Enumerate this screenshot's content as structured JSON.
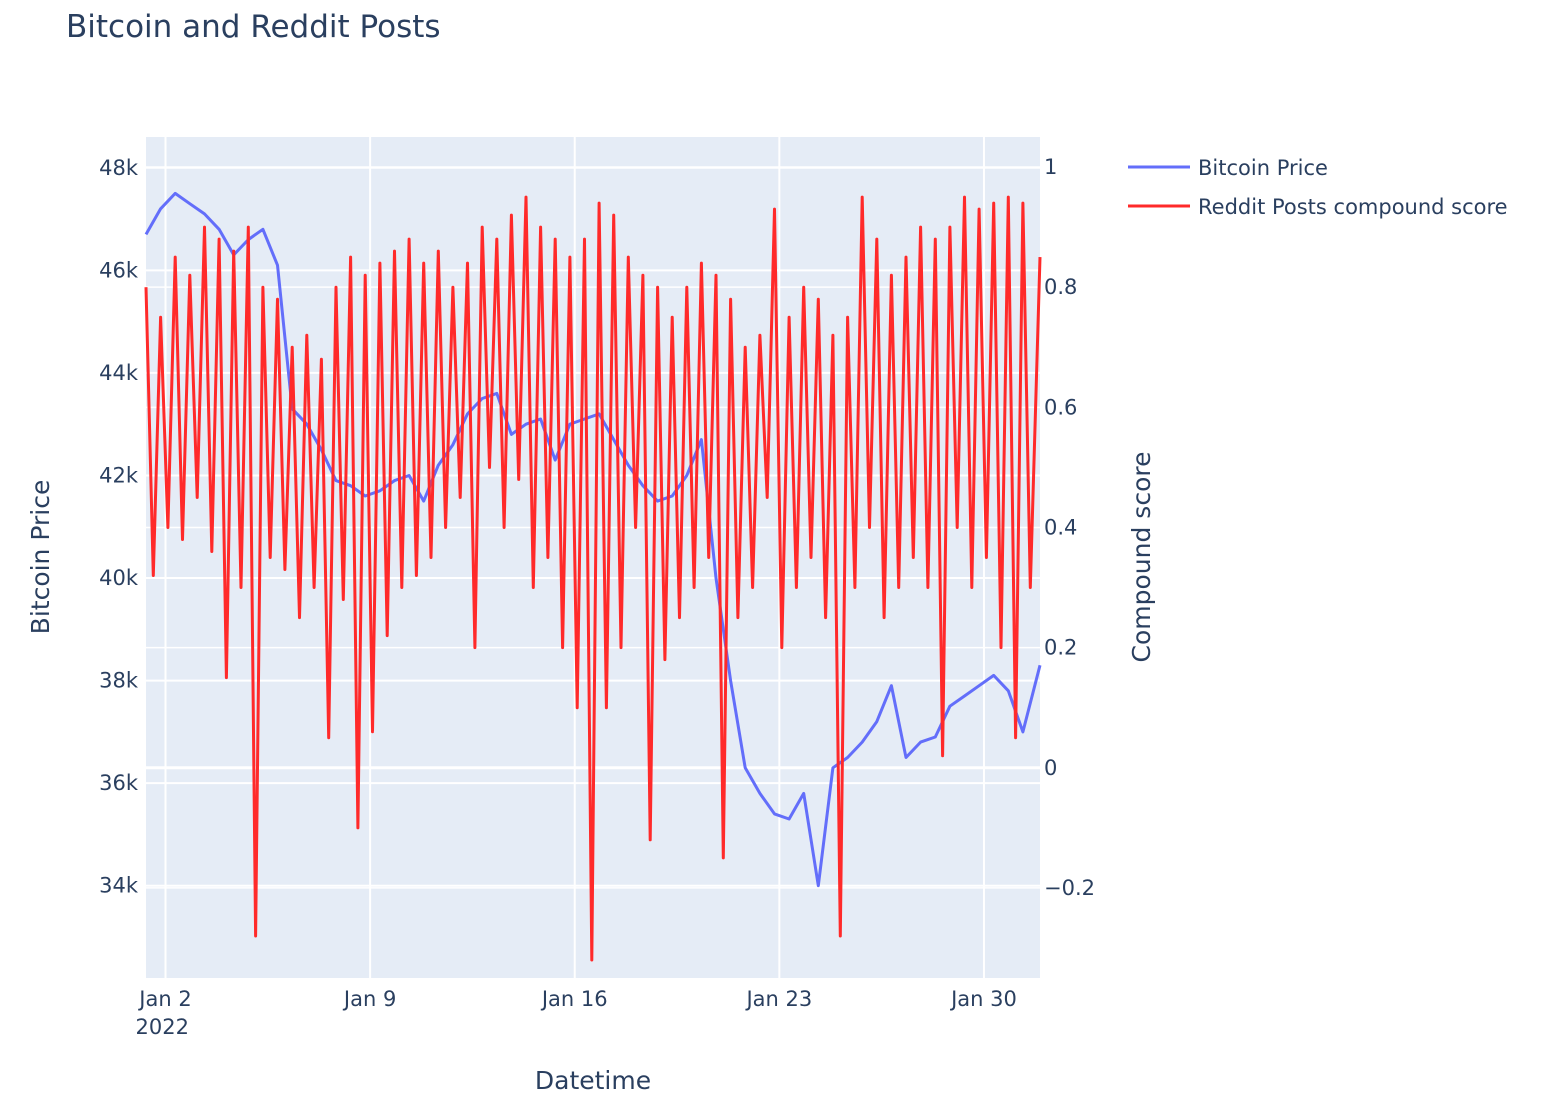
{
  "chart_data": {
    "type": "line",
    "title": "Bitcoin and Reddit Posts",
    "xlabel": "Datetime",
    "ylabel": "Bitcoin Price",
    "y2label": "Compound score",
    "x_range": [
      "2022-01-01 08:00",
      "2022-01-31 22:00"
    ],
    "ylim": [
      32200,
      48600
    ],
    "y2lim": [
      -0.35,
      1.05
    ],
    "x_ticks": [
      {
        "date": "2022-01-02",
        "label": "Jan 2",
        "sublabel": "2022"
      },
      {
        "date": "2022-01-09",
        "label": "Jan 9",
        "sublabel": ""
      },
      {
        "date": "2022-01-16",
        "label": "Jan 16",
        "sublabel": ""
      },
      {
        "date": "2022-01-23",
        "label": "Jan 23",
        "sublabel": ""
      },
      {
        "date": "2022-01-30",
        "label": "Jan 30",
        "sublabel": ""
      }
    ],
    "y_ticks": [
      {
        "value": 34000,
        "label": "34k"
      },
      {
        "value": 36000,
        "label": "36k"
      },
      {
        "value": 38000,
        "label": "38k"
      },
      {
        "value": 40000,
        "label": "40k"
      },
      {
        "value": 42000,
        "label": "42k"
      },
      {
        "value": 44000,
        "label": "44k"
      },
      {
        "value": 46000,
        "label": "46k"
      },
      {
        "value": 48000,
        "label": "48k"
      }
    ],
    "y2_ticks": [
      {
        "value": -0.2,
        "label": "−0.2"
      },
      {
        "value": 0,
        "label": "0"
      },
      {
        "value": 0.2,
        "label": "0.2"
      },
      {
        "value": 0.4,
        "label": "0.4"
      },
      {
        "value": 0.6,
        "label": "0.6"
      },
      {
        "value": 0.8,
        "label": "0.8"
      },
      {
        "value": 1,
        "label": "1"
      }
    ],
    "grid": true,
    "legend_position": "top-right outside",
    "series": [
      {
        "name": "Bitcoin Price",
        "axis": "y",
        "color": "#636efa",
        "x": [
          "2022-01-01 08:00",
          "2022-01-01 20:00",
          "2022-01-02 08:00",
          "2022-01-02 20:00",
          "2022-01-03 08:00",
          "2022-01-03 20:00",
          "2022-01-04 08:00",
          "2022-01-04 20:00",
          "2022-01-05 08:00",
          "2022-01-05 20:00",
          "2022-01-06 08:00",
          "2022-01-06 20:00",
          "2022-01-07 08:00",
          "2022-01-07 20:00",
          "2022-01-08 08:00",
          "2022-01-08 20:00",
          "2022-01-09 08:00",
          "2022-01-09 20:00",
          "2022-01-10 08:00",
          "2022-01-10 20:00",
          "2022-01-11 08:00",
          "2022-01-11 20:00",
          "2022-01-12 08:00",
          "2022-01-12 20:00",
          "2022-01-13 08:00",
          "2022-01-13 20:00",
          "2022-01-14 08:00",
          "2022-01-14 20:00",
          "2022-01-15 08:00",
          "2022-01-15 20:00",
          "2022-01-16 08:00",
          "2022-01-16 20:00",
          "2022-01-17 08:00",
          "2022-01-17 20:00",
          "2022-01-18 08:00",
          "2022-01-18 20:00",
          "2022-01-19 08:00",
          "2022-01-19 20:00",
          "2022-01-20 08:00",
          "2022-01-20 20:00",
          "2022-01-21 08:00",
          "2022-01-21 20:00",
          "2022-01-22 08:00",
          "2022-01-22 20:00",
          "2022-01-23 08:00",
          "2022-01-23 20:00",
          "2022-01-24 08:00",
          "2022-01-24 20:00",
          "2022-01-25 08:00",
          "2022-01-25 20:00",
          "2022-01-26 08:00",
          "2022-01-26 20:00",
          "2022-01-27 08:00",
          "2022-01-27 20:00",
          "2022-01-28 08:00",
          "2022-01-28 20:00",
          "2022-01-29 08:00",
          "2022-01-29 20:00",
          "2022-01-30 08:00",
          "2022-01-30 20:00",
          "2022-01-31 08:00",
          "2022-01-31 22:00"
        ],
        "values": [
          46700,
          47200,
          47500,
          47300,
          47100,
          46800,
          46300,
          46600,
          46800,
          46100,
          43300,
          43000,
          42500,
          41900,
          41800,
          41600,
          41700,
          41900,
          42000,
          41500,
          42200,
          42600,
          43200,
          43500,
          43600,
          42800,
          43000,
          43100,
          42300,
          43000,
          43100,
          43200,
          42700,
          42200,
          41800,
          41500,
          41600,
          42000,
          42700,
          40000,
          38000,
          36300,
          35800,
          35400,
          35300,
          35800,
          34000,
          36300,
          36500,
          36800,
          37200,
          37900,
          36500,
          36800,
          36900,
          37500,
          37700,
          37900,
          38100,
          37800,
          37000,
          38300
        ]
      },
      {
        "name": "Reddit Posts compound score",
        "axis": "y2",
        "color": "#ff2a2a",
        "x": [
          "2022-01-01 08:00",
          "2022-01-01 14:00",
          "2022-01-01 20:00",
          "2022-01-02 02:00",
          "2022-01-02 08:00",
          "2022-01-02 14:00",
          "2022-01-02 20:00",
          "2022-01-03 02:00",
          "2022-01-03 08:00",
          "2022-01-03 14:00",
          "2022-01-03 20:00",
          "2022-01-04 02:00",
          "2022-01-04 08:00",
          "2022-01-04 14:00",
          "2022-01-04 20:00",
          "2022-01-05 02:00",
          "2022-01-05 08:00",
          "2022-01-05 14:00",
          "2022-01-05 20:00",
          "2022-01-06 02:00",
          "2022-01-06 08:00",
          "2022-01-06 14:00",
          "2022-01-06 20:00",
          "2022-01-07 02:00",
          "2022-01-07 08:00",
          "2022-01-07 14:00",
          "2022-01-07 20:00",
          "2022-01-08 02:00",
          "2022-01-08 08:00",
          "2022-01-08 14:00",
          "2022-01-08 20:00",
          "2022-01-09 02:00",
          "2022-01-09 08:00",
          "2022-01-09 14:00",
          "2022-01-09 20:00",
          "2022-01-10 02:00",
          "2022-01-10 08:00",
          "2022-01-10 14:00",
          "2022-01-10 20:00",
          "2022-01-11 02:00",
          "2022-01-11 08:00",
          "2022-01-11 14:00",
          "2022-01-11 20:00",
          "2022-01-12 02:00",
          "2022-01-12 08:00",
          "2022-01-12 14:00",
          "2022-01-12 20:00",
          "2022-01-13 02:00",
          "2022-01-13 08:00",
          "2022-01-13 14:00",
          "2022-01-13 20:00",
          "2022-01-14 02:00",
          "2022-01-14 08:00",
          "2022-01-14 14:00",
          "2022-01-14 20:00",
          "2022-01-15 02:00",
          "2022-01-15 08:00",
          "2022-01-15 14:00",
          "2022-01-15 20:00",
          "2022-01-16 02:00",
          "2022-01-16 08:00",
          "2022-01-16 14:00",
          "2022-01-16 20:00",
          "2022-01-17 02:00",
          "2022-01-17 08:00",
          "2022-01-17 14:00",
          "2022-01-17 20:00",
          "2022-01-18 02:00",
          "2022-01-18 08:00",
          "2022-01-18 14:00",
          "2022-01-18 20:00",
          "2022-01-19 02:00",
          "2022-01-19 08:00",
          "2022-01-19 14:00",
          "2022-01-19 20:00",
          "2022-01-20 02:00",
          "2022-01-20 08:00",
          "2022-01-20 14:00",
          "2022-01-20 20:00",
          "2022-01-21 02:00",
          "2022-01-21 08:00",
          "2022-01-21 14:00",
          "2022-01-21 20:00",
          "2022-01-22 02:00",
          "2022-01-22 08:00",
          "2022-01-22 14:00",
          "2022-01-22 20:00",
          "2022-01-23 02:00",
          "2022-01-23 08:00",
          "2022-01-23 14:00",
          "2022-01-23 20:00",
          "2022-01-24 02:00",
          "2022-01-24 08:00",
          "2022-01-24 14:00",
          "2022-01-24 20:00",
          "2022-01-25 02:00",
          "2022-01-25 08:00",
          "2022-01-25 14:00",
          "2022-01-25 20:00",
          "2022-01-26 02:00",
          "2022-01-26 08:00",
          "2022-01-26 14:00",
          "2022-01-26 20:00",
          "2022-01-27 02:00",
          "2022-01-27 08:00",
          "2022-01-27 14:00",
          "2022-01-27 20:00",
          "2022-01-28 02:00",
          "2022-01-28 08:00",
          "2022-01-28 14:00",
          "2022-01-28 20:00",
          "2022-01-29 02:00",
          "2022-01-29 08:00",
          "2022-01-29 14:00",
          "2022-01-29 20:00",
          "2022-01-30 02:00",
          "2022-01-30 08:00",
          "2022-01-30 14:00",
          "2022-01-30 20:00",
          "2022-01-31 02:00",
          "2022-01-31 08:00",
          "2022-01-31 14:00",
          "2022-01-31 22:00"
        ],
        "values": [
          0.8,
          0.32,
          0.75,
          0.4,
          0.85,
          0.38,
          0.82,
          0.45,
          0.9,
          0.36,
          0.88,
          0.15,
          0.86,
          0.3,
          0.9,
          -0.28,
          0.8,
          0.35,
          0.78,
          0.33,
          0.7,
          0.25,
          0.72,
          0.3,
          0.68,
          0.05,
          0.8,
          0.28,
          0.85,
          -0.1,
          0.82,
          0.06,
          0.84,
          0.22,
          0.86,
          0.3,
          0.88,
          0.32,
          0.84,
          0.35,
          0.86,
          0.4,
          0.8,
          0.45,
          0.84,
          0.2,
          0.9,
          0.5,
          0.88,
          0.4,
          0.92,
          0.48,
          0.95,
          0.3,
          0.9,
          0.35,
          0.88,
          0.2,
          0.85,
          0.1,
          0.88,
          -0.32,
          0.94,
          0.1,
          0.92,
          0.2,
          0.85,
          0.4,
          0.82,
          -0.12,
          0.8,
          0.18,
          0.75,
          0.25,
          0.8,
          0.3,
          0.84,
          0.35,
          0.82,
          -0.15,
          0.78,
          0.25,
          0.7,
          0.3,
          0.72,
          0.45,
          0.93,
          0.2,
          0.75,
          0.3,
          0.8,
          0.35,
          0.78,
          0.25,
          0.72,
          -0.28,
          0.75,
          0.3,
          0.95,
          0.4,
          0.88,
          0.25,
          0.82,
          0.3,
          0.85,
          0.35,
          0.9,
          0.3,
          0.88,
          0.02,
          0.9,
          0.4,
          0.95,
          0.3,
          0.93,
          0.35,
          0.94,
          0.2,
          0.95,
          0.05,
          0.94,
          0.3,
          0.85
        ]
      }
    ]
  }
}
